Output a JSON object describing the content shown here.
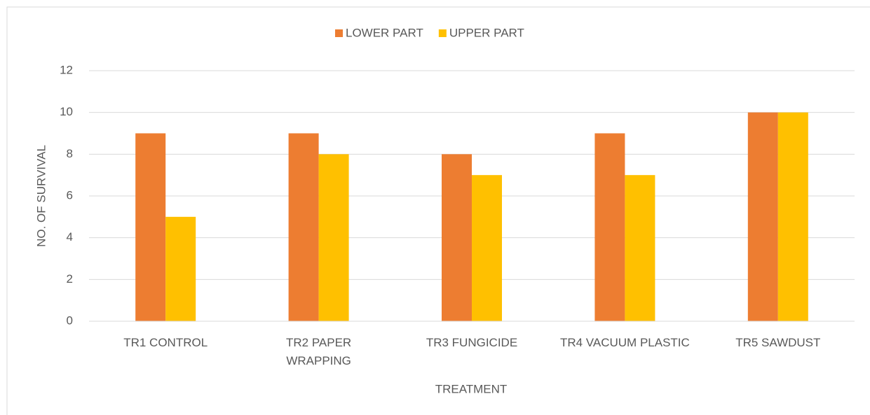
{
  "chart_data": {
    "type": "bar",
    "categories": [
      "TR1 CONTROL",
      "TR2 PAPER WRAPPING",
      "TR3 FUNGICIDE",
      "TR4 VACUUM PLASTIC",
      "TR5 SAWDUST"
    ],
    "series": [
      {
        "name": "LOWER PART",
        "color": "#ed7d31",
        "values": [
          9,
          9,
          8,
          9,
          10
        ]
      },
      {
        "name": "UPPER PART",
        "color": "#ffc000",
        "values": [
          5,
          8,
          7,
          7,
          10
        ]
      }
    ],
    "x_label": "TREATMENT",
    "y_label": "NO. OF SURVIVAL",
    "ylim": [
      0,
      12
    ],
    "yticks": [
      0,
      2,
      4,
      6,
      8,
      10,
      12
    ],
    "grid": true,
    "legend": "top"
  }
}
